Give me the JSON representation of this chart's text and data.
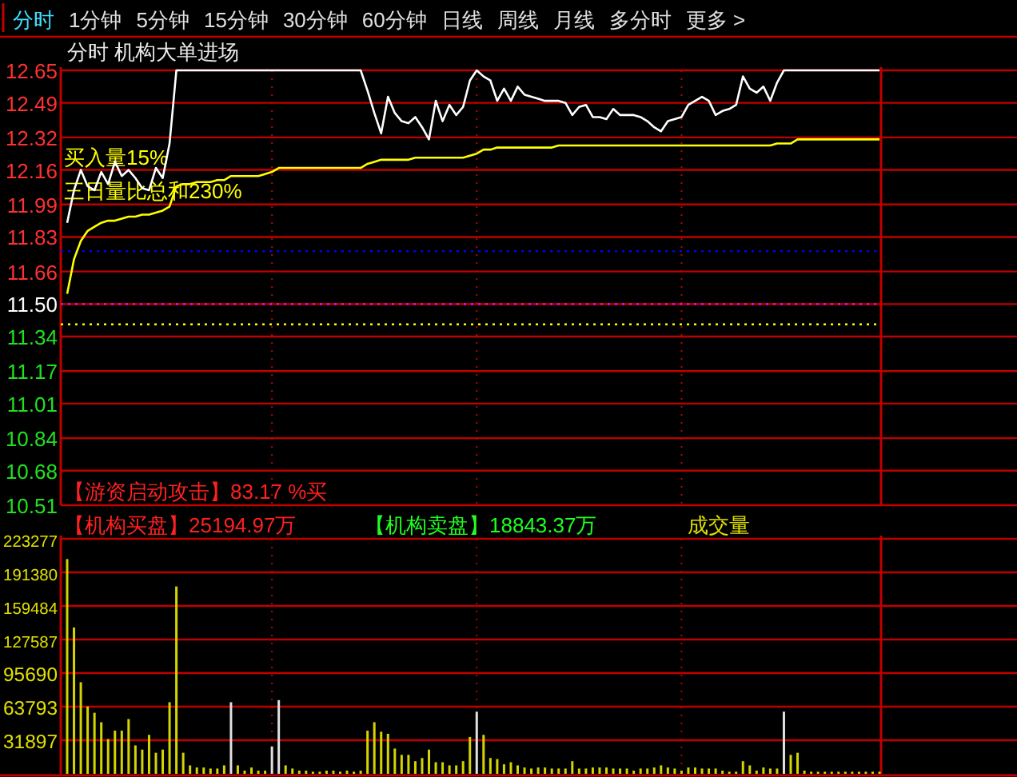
{
  "chart_data": [
    {
      "type": "other",
      "annotations": [
        "分时",
        "1分钟",
        "5分钟",
        "15分钟",
        "30分钟",
        "60分钟",
        "日线",
        "周线",
        "月线",
        "多分时",
        "更多 >"
      ]
    },
    {
      "type": "line",
      "title": "分时 机构大单进场",
      "categories": [
        null,
        null,
        null,
        null,
        null,
        null,
        null,
        null,
        null,
        null,
        null,
        null,
        null,
        null,
        null,
        null,
        null,
        null,
        null,
        null,
        null,
        null,
        null,
        null,
        null,
        null,
        null,
        null,
        null,
        null,
        null,
        null,
        null,
        null,
        null,
        null,
        null,
        null,
        null,
        null,
        null,
        null,
        null,
        null,
        null,
        null,
        null,
        null,
        null,
        null,
        null,
        null,
        null,
        null,
        null,
        null,
        null,
        null,
        null,
        null,
        null,
        null,
        null,
        null,
        null,
        null,
        null,
        null,
        null,
        null,
        null,
        null,
        null,
        null,
        null,
        null,
        null,
        null,
        null,
        null,
        null,
        null,
        null,
        null,
        null,
        null,
        null,
        null,
        null,
        null,
        null,
        null,
        null,
        null,
        null,
        null,
        null,
        null,
        null,
        null,
        null,
        null,
        null,
        null,
        null,
        null,
        null,
        null,
        null,
        null,
        null,
        null,
        null,
        null,
        null,
        null,
        null,
        null,
        null,
        null
      ],
      "series": [
        {
          "color": "#ffffff",
          "values": [
            11.9,
            12.06,
            12.16,
            12.08,
            12.06,
            12.15,
            12.09,
            12.2,
            12.13,
            12.16,
            12.12,
            12.07,
            12.06,
            12.17,
            12.12,
            12.29,
            12.65,
            12.65,
            12.65,
            12.65,
            12.65,
            12.65,
            12.65,
            12.65,
            12.65,
            12.65,
            12.65,
            12.65,
            12.65,
            12.65,
            12.65,
            12.65,
            12.65,
            12.65,
            12.65,
            12.65,
            12.65,
            12.65,
            12.65,
            12.65,
            12.65,
            12.65,
            12.65,
            12.65,
            12.55,
            12.44,
            12.34,
            12.52,
            12.44,
            12.4,
            12.39,
            12.42,
            12.37,
            12.31,
            12.5,
            12.4,
            12.48,
            12.43,
            12.47,
            12.6,
            12.65,
            12.62,
            12.6,
            12.5,
            12.56,
            12.5,
            12.57,
            12.53,
            12.52,
            12.51,
            12.5,
            12.5,
            12.5,
            12.49,
            12.43,
            12.47,
            12.48,
            12.42,
            12.42,
            12.41,
            12.46,
            12.43,
            12.43,
            12.43,
            12.42,
            12.4,
            12.37,
            12.35,
            12.4,
            12.41,
            12.42,
            12.48,
            12.5,
            12.52,
            12.5,
            12.43,
            12.45,
            12.46,
            12.48,
            12.62,
            12.56,
            12.54,
            12.57,
            12.5,
            12.59,
            12.65,
            12.65,
            12.65,
            12.65,
            12.65,
            12.65,
            12.65,
            12.65,
            12.65,
            12.65,
            12.65,
            12.65,
            12.65,
            12.65,
            12.65
          ]
        },
        {
          "color": "#ffff00",
          "values": [
            11.55,
            11.72,
            11.81,
            11.86,
            11.88,
            11.9,
            11.91,
            11.91,
            11.92,
            11.93,
            11.93,
            11.94,
            11.94,
            11.95,
            11.96,
            11.98,
            12.08,
            12.09,
            12.09,
            12.1,
            12.1,
            12.1,
            12.11,
            12.11,
            12.13,
            12.13,
            12.13,
            12.13,
            12.13,
            12.14,
            12.15,
            12.17,
            12.17,
            12.17,
            12.17,
            12.17,
            12.17,
            12.17,
            12.17,
            12.17,
            12.17,
            12.17,
            12.17,
            12.17,
            12.19,
            12.2,
            12.21,
            12.21,
            12.21,
            12.21,
            12.21,
            12.22,
            12.22,
            12.22,
            12.22,
            12.22,
            12.22,
            12.22,
            12.22,
            12.23,
            12.24,
            12.26,
            12.26,
            12.27,
            12.27,
            12.27,
            12.27,
            12.27,
            12.27,
            12.27,
            12.27,
            12.27,
            12.28,
            12.28,
            12.28,
            12.28,
            12.28,
            12.28,
            12.28,
            12.28,
            12.28,
            12.28,
            12.28,
            12.28,
            12.28,
            12.28,
            12.28,
            12.28,
            12.28,
            12.28,
            12.28,
            12.28,
            12.28,
            12.28,
            12.28,
            12.28,
            12.28,
            12.28,
            12.28,
            12.28,
            12.28,
            12.28,
            12.28,
            12.28,
            12.29,
            12.29,
            12.29,
            12.31,
            12.31,
            12.31,
            12.31,
            12.31,
            12.31,
            12.31,
            12.31,
            12.31,
            12.31,
            12.31,
            12.31,
            12.31
          ]
        }
      ],
      "ylim": [
        10.51,
        12.65
      ],
      "yticks": [
        12.65,
        12.49,
        12.32,
        12.16,
        11.99,
        11.83,
        11.66,
        {
          "value": 11.5,
          "label": "11.50"
        },
        11.34,
        11.17,
        11.01,
        10.84,
        10.68,
        10.51
      ],
      "grid": true,
      "tick_labels": "y",
      "ref_lines": [
        {
          "axis": "y",
          "value": 11.5,
          "color": "#ff00ff",
          "line_style": "dotted"
        },
        {
          "axis": "y",
          "value": 11.4,
          "color": "#ffff00",
          "line_style": "dotted"
        },
        {
          "axis": "y",
          "value": 11.76,
          "color": "#0000ff",
          "line_style": "dotted"
        }
      ],
      "annotations": [
        "买入量15%",
        "三日量比总和230%",
        "【游资启动攻击】83.17 %买"
      ]
    },
    {
      "type": "bar",
      "title": "成交量",
      "categories": [
        null,
        null,
        null,
        null,
        null,
        null,
        null,
        null,
        null,
        null,
        null,
        null,
        null,
        null,
        null,
        null,
        null,
        null,
        null,
        null,
        null,
        null,
        null,
        null,
        null,
        null,
        null,
        null,
        null,
        null,
        null,
        null,
        null,
        null,
        null,
        null,
        null,
        null,
        null,
        null,
        null,
        null,
        null,
        null,
        null,
        null,
        null,
        null,
        null,
        null,
        null,
        null,
        null,
        null,
        null,
        null,
        null,
        null,
        null,
        null,
        null,
        null,
        null,
        null,
        null,
        null,
        null,
        null,
        null,
        null,
        null,
        null,
        null,
        null,
        null,
        null,
        null,
        null,
        null,
        null,
        null,
        null,
        null,
        null,
        null,
        null,
        null,
        null,
        null,
        null,
        null,
        null,
        null,
        null,
        null,
        null,
        null,
        null,
        null,
        null,
        null,
        null,
        null,
        null,
        null,
        null,
        null,
        null,
        null,
        null,
        null,
        null,
        null,
        null,
        null,
        null,
        null,
        null,
        null,
        null
      ],
      "values": [
        204000,
        139000,
        87000,
        64000,
        58000,
        49000,
        33000,
        41000,
        41000,
        52000,
        27000,
        23000,
        37000,
        20000,
        23000,
        68000,
        178000,
        20000,
        8000,
        6000,
        6000,
        5000,
        5000,
        8000,
        68000,
        8000,
        3000,
        6000,
        3000,
        3000,
        26000,
        70000,
        8000,
        5000,
        3000,
        3000,
        2000,
        2000,
        3000,
        3000,
        2000,
        3000,
        2000,
        3000,
        41000,
        49000,
        40000,
        38000,
        24000,
        18000,
        18000,
        12000,
        15000,
        23000,
        11000,
        11000,
        8000,
        8000,
        12000,
        35000,
        59000,
        37000,
        15000,
        14000,
        9000,
        11000,
        8000,
        6000,
        5000,
        6000,
        6000,
        5000,
        5000,
        5000,
        12000,
        5000,
        5000,
        6000,
        6000,
        6000,
        5000,
        5000,
        5000,
        3000,
        5000,
        5000,
        6000,
        8000,
        6000,
        5000,
        3000,
        6000,
        6000,
        5000,
        5000,
        5000,
        3000,
        2000,
        2000,
        12000,
        8000,
        3000,
        6000,
        5000,
        5000,
        59000,
        18000,
        20000,
        3000,
        2000,
        2000,
        2000,
        2000,
        2000,
        2000,
        2000,
        2000,
        2000,
        2000,
        2000
      ],
      "colors": [
        "#d4d400",
        "#d4d400",
        "#d4d400",
        "#d4d400",
        "#d4d400",
        "#d4d400",
        "#d4d400",
        "#d4d400",
        "#d4d400",
        "#d4d400",
        "#d4d400",
        "#d4d400",
        "#d4d400",
        "#d4d400",
        "#d4d400",
        "#d4d400",
        "#d4d400",
        "#d4d400",
        "#d4d400",
        "#d4d400",
        "#d4d400",
        "#d4d400",
        "#d4d400",
        "#d4d400",
        "#e0e0e0",
        "#d4d400",
        "#d4d400",
        "#d4d400",
        "#d4d400",
        "#d4d400",
        "#e0e0e0",
        "#e0e0e0",
        "#d4d400",
        "#d4d400",
        "#d4d400",
        "#d4d400",
        "#d4d400",
        "#d4d400",
        "#d4d400",
        "#d4d400",
        "#d4d400",
        "#d4d400",
        "#d4d400",
        "#d4d400",
        "#d4d400",
        "#d4d400",
        "#d4d400",
        "#d4d400",
        "#d4d400",
        "#d4d400",
        "#d4d400",
        "#d4d400",
        "#d4d400",
        "#d4d400",
        "#d4d400",
        "#d4d400",
        "#d4d400",
        "#d4d400",
        "#d4d400",
        "#d4d400",
        "#e0e0e0",
        "#d4d400",
        "#d4d400",
        "#d4d400",
        "#d4d400",
        "#d4d400",
        "#d4d400",
        "#d4d400",
        "#d4d400",
        "#d4d400",
        "#d4d400",
        "#d4d400",
        "#d4d400",
        "#d4d400",
        "#d4d400",
        "#d4d400",
        "#d4d400",
        "#d4d400",
        "#d4d400",
        "#d4d400",
        "#d4d400",
        "#d4d400",
        "#d4d400",
        "#d4d400",
        "#d4d400",
        "#d4d400",
        "#d4d400",
        "#d4d400",
        "#d4d400",
        "#d4d400",
        "#d4d400",
        "#d4d400",
        "#d4d400",
        "#d4d400",
        "#d4d400",
        "#d4d400",
        "#d4d400",
        "#d4d400",
        "#d4d400",
        "#d4d400",
        "#d4d400",
        "#d4d400",
        "#d4d400",
        "#d4d400",
        "#d4d400",
        "#e0e0e0",
        "#d4d400",
        "#d4d400",
        "#d4d400",
        "#d4d400",
        "#d4d400",
        "#d4d400",
        "#d4d400",
        "#d4d400",
        "#d4d400",
        "#d4d400",
        "#d4d400",
        "#d4d400",
        "#d4d400",
        "#d4d400"
      ],
      "ylim": [
        0,
        223277
      ],
      "yticks": [
        223277,
        191380,
        159484,
        127587,
        95690,
        63793,
        31897
      ],
      "grid": true,
      "tick_labels": "y",
      "annotations": [
        "【机构买盘】25194.97万",
        "【机构卖盘】18843.37万"
      ]
    }
  ]
}
